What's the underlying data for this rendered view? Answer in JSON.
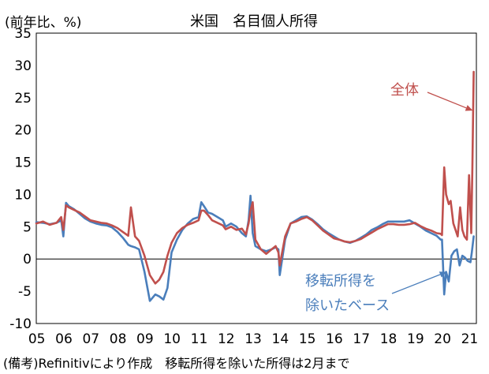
{
  "chart_data": {
    "type": "line",
    "title": "米国　名目個人所得",
    "ylabel": "(前年比、%)",
    "xlabel": "",
    "note": "(備考)Refinitivにより作成　移転所得を除いた所得は2月まで",
    "ylim": [
      -10,
      35
    ],
    "yticks": [
      -10,
      -5,
      0,
      5,
      10,
      15,
      20,
      25,
      30,
      35
    ],
    "xlim": [
      2005.0,
      2021.25
    ],
    "xtick_labels": [
      "05",
      "06",
      "07",
      "08",
      "09",
      "10",
      "11",
      "12",
      "13",
      "14",
      "15",
      "16",
      "17",
      "18",
      "19",
      "20",
      "21"
    ],
    "grid": false,
    "legend": "none",
    "annotations": [
      {
        "text": "全体",
        "series": "全体",
        "arrow_to": [
          2021.14,
          23
        ]
      },
      {
        "text": "移転所得を",
        "text2": "除いたベース",
        "series": "移転所得を除いたベース",
        "arrow_to": [
          2020.18,
          -2
        ]
      }
    ],
    "series": [
      {
        "name": "全体",
        "color": "#c0504d",
        "x": [
          2005.0,
          2005.25,
          2005.5,
          2005.75,
          2005.92,
          2006.0,
          2006.1,
          2006.2,
          2006.4,
          2006.6,
          2006.8,
          2007.0,
          2007.2,
          2007.4,
          2007.6,
          2007.8,
          2008.0,
          2008.2,
          2008.4,
          2008.5,
          2008.65,
          2008.8,
          2009.0,
          2009.2,
          2009.4,
          2009.55,
          2009.7,
          2009.85,
          2010.0,
          2010.2,
          2010.4,
          2010.6,
          2010.8,
          2011.0,
          2011.1,
          2011.2,
          2011.35,
          2011.5,
          2011.7,
          2011.9,
          2012.0,
          2012.2,
          2012.4,
          2012.6,
          2012.75,
          2012.85,
          2012.92,
          2013.0,
          2013.1,
          2013.3,
          2013.5,
          2013.7,
          2013.85,
          2013.95,
          2014.0,
          2014.2,
          2014.4,
          2014.6,
          2014.8,
          2015.0,
          2015.2,
          2015.4,
          2015.6,
          2015.8,
          2016.0,
          2016.2,
          2016.4,
          2016.6,
          2016.8,
          2017.0,
          2017.2,
          2017.4,
          2017.6,
          2017.8,
          2018.0,
          2018.2,
          2018.4,
          2018.6,
          2018.8,
          2019.0,
          2019.2,
          2019.4,
          2019.6,
          2019.8,
          2019.95,
          2020.0,
          2020.08,
          2020.15,
          2020.25,
          2020.32,
          2020.42,
          2020.5,
          2020.58,
          2020.67,
          2020.75,
          2020.83,
          2020.92,
          2021.0,
          2021.08,
          2021.12,
          2021.17
        ],
        "values": [
          5.5,
          5.8,
          5.3,
          5.6,
          6.5,
          4.5,
          8.3,
          8.0,
          7.6,
          7.2,
          6.6,
          6.0,
          5.8,
          5.6,
          5.5,
          5.2,
          4.8,
          4.2,
          3.6,
          8.0,
          3.5,
          2.8,
          0.5,
          -2.5,
          -3.8,
          -3.2,
          -2.0,
          0.5,
          2.5,
          4.0,
          4.8,
          5.3,
          5.6,
          6.0,
          7.5,
          7.5,
          6.8,
          6.0,
          5.6,
          5.2,
          4.6,
          5.0,
          4.5,
          4.7,
          3.8,
          5.5,
          7.5,
          8.8,
          3.0,
          1.5,
          0.8,
          1.5,
          2.0,
          1.0,
          -1.0,
          3.5,
          5.5,
          5.8,
          6.2,
          6.5,
          6.0,
          5.2,
          4.4,
          3.8,
          3.2,
          3.0,
          2.7,
          2.6,
          2.8,
          3.1,
          3.6,
          4.1,
          4.6,
          5.0,
          5.4,
          5.4,
          5.3,
          5.3,
          5.4,
          5.6,
          5.1,
          4.7,
          4.4,
          4.0,
          3.9,
          3.7,
          14.2,
          10.0,
          8.5,
          9.0,
          5.5,
          4.5,
          3.5,
          8.0,
          4.5,
          3.5,
          3.0,
          13.0,
          4.0,
          14.0,
          29.0
        ]
      },
      {
        "name": "移転所得を除いたベース",
        "color": "#4a7ebb",
        "x": [
          2005.0,
          2005.25,
          2005.5,
          2005.75,
          2005.92,
          2006.0,
          2006.1,
          2006.2,
          2006.4,
          2006.6,
          2006.8,
          2007.0,
          2007.2,
          2007.4,
          2007.6,
          2007.8,
          2008.0,
          2008.2,
          2008.4,
          2008.5,
          2008.65,
          2008.8,
          2009.0,
          2009.2,
          2009.4,
          2009.55,
          2009.7,
          2009.85,
          2010.0,
          2010.2,
          2010.4,
          2010.6,
          2010.8,
          2011.0,
          2011.1,
          2011.2,
          2011.35,
          2011.5,
          2011.7,
          2011.9,
          2012.0,
          2012.2,
          2012.4,
          2012.6,
          2012.75,
          2012.85,
          2012.92,
          2013.0,
          2013.1,
          2013.3,
          2013.5,
          2013.7,
          2013.85,
          2013.95,
          2014.0,
          2014.2,
          2014.4,
          2014.6,
          2014.8,
          2015.0,
          2015.2,
          2015.4,
          2015.6,
          2015.8,
          2016.0,
          2016.2,
          2016.4,
          2016.6,
          2016.8,
          2017.0,
          2017.2,
          2017.4,
          2017.6,
          2017.8,
          2018.0,
          2018.2,
          2018.4,
          2018.6,
          2018.8,
          2019.0,
          2019.2,
          2019.4,
          2019.6,
          2019.8,
          2019.95,
          2020.0,
          2020.08,
          2020.15,
          2020.25,
          2020.35,
          2020.45,
          2020.55,
          2020.65,
          2020.75,
          2020.85,
          2020.95,
          2021.05,
          2021.1,
          2021.17
        ],
        "values": [
          5.7,
          5.6,
          5.4,
          5.6,
          6.0,
          3.5,
          8.7,
          8.2,
          7.7,
          7.0,
          6.3,
          5.8,
          5.5,
          5.3,
          5.2,
          4.9,
          4.2,
          3.3,
          2.2,
          2.0,
          1.8,
          1.5,
          -2.0,
          -6.5,
          -5.5,
          -5.8,
          -6.3,
          -4.5,
          1.0,
          3.0,
          4.5,
          5.5,
          6.2,
          6.5,
          8.8,
          8.2,
          7.2,
          7.0,
          6.5,
          6.0,
          5.0,
          5.5,
          5.0,
          4.0,
          3.5,
          6.0,
          9.8,
          4.0,
          2.0,
          1.5,
          1.2,
          1.5,
          1.8,
          1.5,
          -2.5,
          3.0,
          5.5,
          6.0,
          6.5,
          6.6,
          6.1,
          5.4,
          4.6,
          4.0,
          3.5,
          3.0,
          2.7,
          2.5,
          2.8,
          3.3,
          3.8,
          4.5,
          4.9,
          5.4,
          5.8,
          5.8,
          5.8,
          5.8,
          6.0,
          5.5,
          5.0,
          4.4,
          4.0,
          3.6,
          3.0,
          3.0,
          -5.5,
          -2.0,
          -3.5,
          0.5,
          1.2,
          1.5,
          -1.0,
          0.5,
          0.2,
          -0.3,
          -0.5,
          1.0,
          3.5
        ]
      }
    ]
  }
}
